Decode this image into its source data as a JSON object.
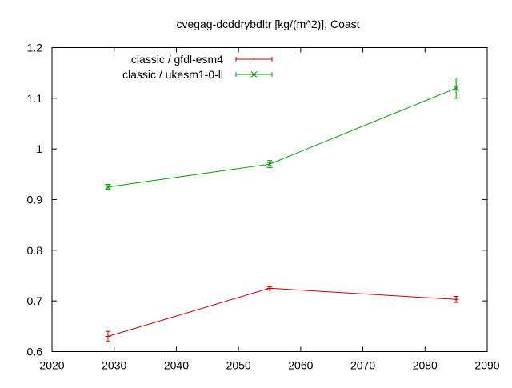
{
  "chart_data": {
    "type": "line",
    "title": "cvegag-dcddrybdltr [kg/(m^2)], Coast",
    "xlabel": "",
    "ylabel": "",
    "xlim": [
      2020,
      2090
    ],
    "ylim": [
      0.6,
      1.2
    ],
    "x_ticks": [
      2020,
      2030,
      2040,
      2050,
      2060,
      2070,
      2080,
      2090
    ],
    "y_ticks": [
      0.6,
      0.7,
      0.8,
      0.9,
      1,
      1.1,
      1.2
    ],
    "grid": false,
    "legend_position": "top-left",
    "series": [
      {
        "name": "classic / gfdl-esm4",
        "color": "#cc0000",
        "marker": "plus",
        "x": [
          2029,
          2055,
          2085
        ],
        "y": [
          0.63,
          0.725,
          0.703
        ],
        "err": [
          0.01,
          0.003,
          0.006
        ]
      },
      {
        "name": "classic / ukesm1-0-ll",
        "color": "#009900",
        "marker": "cross",
        "x": [
          2029,
          2055,
          2085
        ],
        "y": [
          0.925,
          0.97,
          1.12
        ],
        "err": [
          0.005,
          0.007,
          0.02
        ]
      }
    ]
  }
}
